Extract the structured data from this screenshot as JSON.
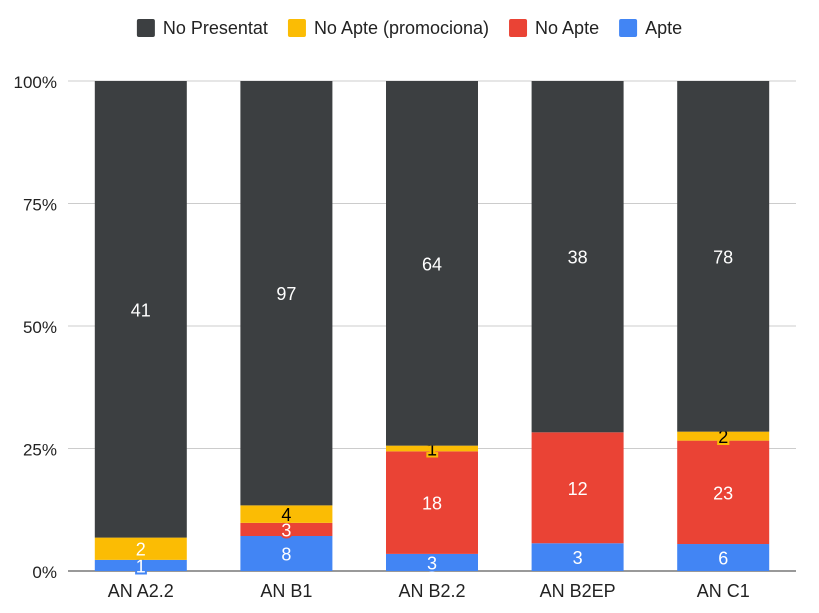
{
  "chart_data": {
    "type": "bar",
    "stacked": "percent",
    "title": "",
    "xlabel": "",
    "ylabel": "",
    "categories": [
      "AN A2.2",
      "AN B1",
      "AN B2.2",
      "AN B2EP",
      "AN C1"
    ],
    "series": [
      {
        "name": "Apte",
        "color": "#4285f4",
        "values": [
          1,
          8,
          3,
          3,
          6
        ]
      },
      {
        "name": "No Apte",
        "color": "#ea4335",
        "values": [
          0,
          3,
          18,
          12,
          23
        ]
      },
      {
        "name": "No Apte (promociona)",
        "color": "#fbbc04",
        "values": [
          2,
          4,
          1,
          0,
          2
        ]
      },
      {
        "name": "No Presentat",
        "color": "#3c3f41",
        "values": [
          41,
          97,
          64,
          38,
          78
        ]
      }
    ],
    "legend_order": [
      "No Presentat",
      "No Apte (promociona)",
      "No Apte",
      "Apte"
    ],
    "legend_position": "top",
    "y_ticks": [
      "0%",
      "25%",
      "50%",
      "75%",
      "100%"
    ],
    "ylim": [
      0,
      100
    ],
    "grid": true
  }
}
